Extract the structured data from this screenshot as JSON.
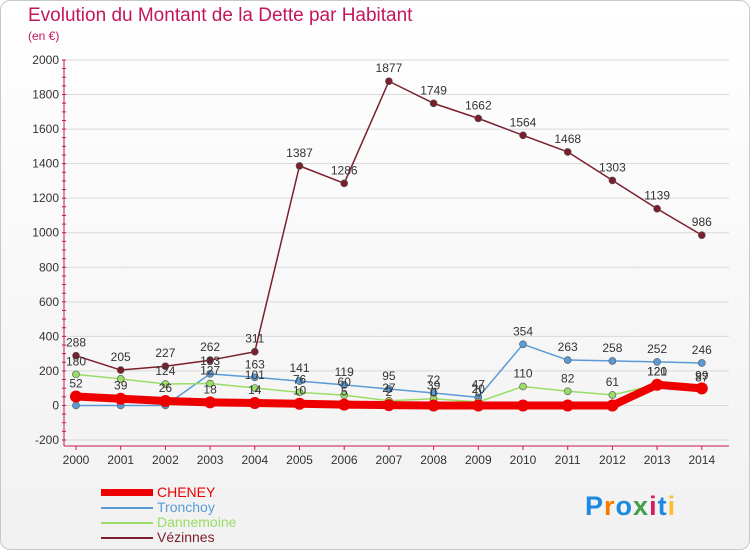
{
  "header": {
    "title": "Evolution du Montant de la Dette par Habitant",
    "subtitle": "(en €)"
  },
  "logo": {
    "text": "Proxiti",
    "letter_colors": [
      "#1e88e5",
      "#f57c00",
      "#1e88e5",
      "#43a047",
      "#d81b60",
      "#1e88e5",
      "#fbc02d"
    ]
  },
  "colors": {
    "title": "#c2185b",
    "axis": "#c2185b",
    "grid": "#d9d9d9",
    "value_label": "#333333"
  },
  "chart_data": {
    "type": "line",
    "title": "Evolution du Montant de la Dette par Habitant",
    "subtitle": "(en €)",
    "xlabel": "",
    "ylabel": "",
    "x": [
      "2000",
      "2001",
      "2002",
      "2003",
      "2004",
      "2005",
      "2006",
      "2007",
      "2008",
      "2009",
      "2010",
      "2011",
      "2012",
      "2013",
      "2014"
    ],
    "ylim": [
      -200,
      2000
    ],
    "yticks": [
      "-200",
      "0",
      "200",
      "400",
      "600",
      "800",
      "1000",
      "1200",
      "1400",
      "1600",
      "1800",
      "2000"
    ],
    "grid": true,
    "legend_position": "bottom-left",
    "series": [
      {
        "name": "CHENEY",
        "color": "#ee0000",
        "values": [
          52,
          39,
          26,
          18,
          14,
          10,
          5,
          2,
          0,
          0,
          0,
          0,
          0,
          120,
          99
        ],
        "labels": [
          "52",
          "39",
          "26",
          "18",
          "14",
          "10",
          "5",
          "2",
          "0",
          "0",
          "",
          "",
          "",
          "120",
          "99"
        ]
      },
      {
        "name": "Tronchoy",
        "color": "#5b9bd5",
        "values": [
          0,
          0,
          0,
          183,
          163,
          141,
          119,
          95,
          72,
          47,
          354,
          263,
          258,
          252,
          246
        ],
        "labels": [
          "",
          "",
          "",
          "183",
          "163",
          "141",
          "119",
          "95",
          "72",
          "47",
          "354",
          "263",
          "258",
          "252",
          "246"
        ]
      },
      {
        "name": "Dannemoine",
        "color": "#99dd66",
        "values": [
          180,
          154,
          124,
          127,
          101,
          76,
          60,
          27,
          39,
          20,
          110,
          82,
          61,
          121,
          87
        ],
        "labels": [
          "180",
          "",
          "124",
          "127",
          "101",
          "76",
          "60",
          "27",
          "39",
          "20",
          "110",
          "82",
          "61",
          "121",
          "87"
        ]
      },
      {
        "name": "Vézinnes",
        "color": "#7a1f2b",
        "values": [
          288,
          205,
          227,
          262,
          311,
          1387,
          1286,
          1877,
          1749,
          1662,
          1564,
          1468,
          1303,
          1139,
          986
        ],
        "labels": [
          "288",
          "205",
          "227",
          "262",
          "311",
          "1387",
          "1286",
          "1877",
          "1749",
          "1662",
          "1564",
          "1468",
          "1303",
          "1139",
          "986"
        ]
      }
    ]
  }
}
